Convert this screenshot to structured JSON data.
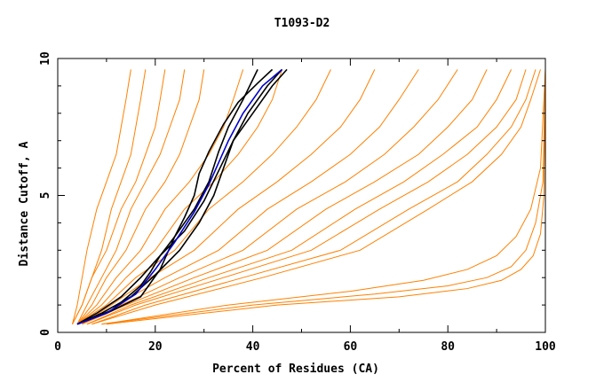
{
  "chart_data": {
    "type": "line",
    "title": "T1093-D2",
    "xlabel": "Percent of Residues (CA)",
    "ylabel": "Distance Cutoff, A",
    "xlim": [
      0,
      100
    ],
    "ylim": [
      0,
      10
    ],
    "x_ticks": [
      "0",
      "20",
      "40",
      "60",
      "80",
      "100"
    ],
    "y_ticks": [
      "0",
      "5",
      "10"
    ],
    "grid": false,
    "legend": "none",
    "colors": {
      "bulk": "#ff8000",
      "highlight_black": "#000000",
      "highlight_blue": "#0000cc"
    },
    "series": [
      {
        "color": "#ff8000",
        "x": [
          3,
          4,
          5,
          6,
          8,
          10,
          12,
          13,
          14,
          15
        ],
        "y": [
          0.3,
          1,
          2,
          3,
          4.5,
          5.5,
          6.5,
          7.5,
          8.5,
          9.6
        ]
      },
      {
        "color": "#ff8000",
        "x": [
          3,
          5,
          7,
          9,
          11,
          13,
          15,
          16,
          17,
          18
        ],
        "y": [
          0.3,
          1,
          2,
          3,
          4.5,
          5.5,
          6.5,
          7.5,
          8.5,
          9.6
        ]
      },
      {
        "color": "#ff8000",
        "x": [
          3,
          5,
          7,
          10,
          13,
          16,
          18,
          20,
          21,
          22
        ],
        "y": [
          0.3,
          1,
          2,
          3,
          4.5,
          5.5,
          6.5,
          7.5,
          8.5,
          9.6
        ]
      },
      {
        "color": "#ff8000",
        "x": [
          4,
          6,
          9,
          12,
          15,
          18,
          21,
          23,
          25,
          26
        ],
        "y": [
          0.3,
          1,
          2,
          3,
          4.5,
          5.5,
          6.5,
          7.5,
          8.5,
          9.6
        ]
      },
      {
        "color": "#ff8000",
        "x": [
          4,
          7,
          10,
          14,
          18,
          22,
          25,
          27,
          29,
          30
        ],
        "y": [
          0.3,
          1,
          2,
          3,
          4.5,
          5.5,
          6.5,
          7.5,
          8.5,
          9.6
        ]
      },
      {
        "color": "#ff8000",
        "x": [
          4,
          8,
          12,
          17,
          22,
          27,
          31,
          34,
          36,
          38
        ],
        "y": [
          0.3,
          1,
          2,
          3,
          4.5,
          5.5,
          6.5,
          7.5,
          8.5,
          9.6
        ]
      },
      {
        "color": "#ff8000",
        "x": [
          4,
          9,
          14,
          20,
          26,
          32,
          37,
          41,
          44,
          46
        ],
        "y": [
          0.3,
          1,
          2,
          3,
          4.5,
          5.5,
          6.5,
          7.5,
          8.5,
          9.6
        ]
      },
      {
        "color": "#ff8000",
        "x": [
          4,
          10,
          16,
          24,
          31,
          38,
          44,
          49,
          53,
          56
        ],
        "y": [
          0.3,
          1,
          2,
          3,
          4.5,
          5.5,
          6.5,
          7.5,
          8.5,
          9.6
        ]
      },
      {
        "color": "#ff8000",
        "x": [
          5,
          11,
          19,
          28,
          37,
          45,
          52,
          58,
          62,
          65
        ],
        "y": [
          0.3,
          1,
          2,
          3,
          4.5,
          5.5,
          6.5,
          7.5,
          8.5,
          9.6
        ]
      },
      {
        "color": "#ff8000",
        "x": [
          5,
          12,
          22,
          33,
          43,
          52,
          60,
          66,
          70,
          74
        ],
        "y": [
          0.3,
          1,
          2,
          3,
          4.5,
          5.5,
          6.5,
          7.5,
          8.5,
          9.6
        ]
      },
      {
        "color": "#ff8000",
        "x": [
          5,
          13,
          25,
          38,
          49,
          59,
          67,
          73,
          78,
          82
        ],
        "y": [
          0.3,
          1,
          2,
          3,
          4.5,
          5.5,
          6.5,
          7.5,
          8.5,
          9.6
        ]
      },
      {
        "color": "#ff8000",
        "x": [
          5,
          14,
          28,
          43,
          55,
          65,
          74,
          80,
          85,
          88
        ],
        "y": [
          0.3,
          1,
          2,
          3,
          4.5,
          5.5,
          6.5,
          7.5,
          8.5,
          9.6
        ]
      },
      {
        "color": "#ff8000",
        "x": [
          6,
          15,
          31,
          48,
          61,
          71,
          79,
          86,
          90,
          93
        ],
        "y": [
          0.3,
          1,
          2,
          3,
          4.5,
          5.5,
          6.5,
          7.5,
          8.5,
          9.6
        ]
      },
      {
        "color": "#ff8000",
        "x": [
          6,
          16,
          34,
          52,
          66,
          76,
          84,
          90,
          94,
          96
        ],
        "y": [
          0.3,
          1,
          2,
          3,
          4.5,
          5.5,
          6.5,
          7.5,
          8.5,
          9.6
        ]
      },
      {
        "color": "#ff8000",
        "x": [
          7,
          18,
          38,
          58,
          72,
          82,
          88,
          93,
          96,
          98
        ],
        "y": [
          0.3,
          1,
          2,
          3,
          4.5,
          5.5,
          6.5,
          7.5,
          8.5,
          9.6
        ]
      },
      {
        "color": "#ff8000",
        "x": [
          7,
          20,
          42,
          62,
          76,
          85,
          91,
          95,
          97,
          99
        ],
        "y": [
          0.3,
          1,
          2,
          3,
          4.5,
          5.5,
          6.5,
          7.5,
          8.5,
          9.6
        ]
      },
      {
        "color": "#ff8000",
        "x": [
          9,
          35,
          60,
          75,
          84,
          90,
          94,
          97,
          99,
          100
        ],
        "y": [
          0.3,
          1,
          1.5,
          1.9,
          2.3,
          2.8,
          3.5,
          4.5,
          6,
          9.6
        ]
      },
      {
        "color": "#ff8000",
        "x": [
          9,
          40,
          65,
          80,
          88,
          93,
          96,
          98,
          99.5,
          100
        ],
        "y": [
          0.3,
          1,
          1.4,
          1.7,
          2,
          2.4,
          3,
          4,
          5.5,
          9.6
        ]
      },
      {
        "color": "#ff8000",
        "x": [
          10,
          45,
          70,
          84,
          91,
          95,
          97.5,
          99,
          99.7,
          100
        ],
        "y": [
          0.3,
          1,
          1.3,
          1.6,
          1.9,
          2.3,
          2.8,
          3.6,
          5,
          9.6
        ]
      },
      {
        "color": "#000000",
        "x": [
          4,
          8,
          13,
          17,
          21,
          26,
          30,
          33,
          36,
          40,
          44,
          47
        ],
        "y": [
          0.3,
          0.7,
          1.3,
          2.0,
          2.8,
          3.7,
          4.8,
          5.9,
          7.0,
          8.0,
          9.0,
          9.6
        ]
      },
      {
        "color": "#000000",
        "x": [
          4,
          9,
          15,
          20,
          25,
          29,
          32,
          34,
          36,
          39,
          43,
          46
        ],
        "y": [
          0.3,
          0.7,
          1.3,
          2.1,
          3.0,
          4.0,
          5.0,
          6.0,
          7.0,
          8.0,
          9.0,
          9.6
        ]
      },
      {
        "color": "#000000",
        "x": [
          4,
          10,
          17,
          21,
          24,
          28,
          31,
          33,
          35,
          38,
          41
        ],
        "y": [
          0.3,
          0.7,
          1.3,
          2.3,
          3.5,
          4.5,
          5.5,
          6.6,
          7.5,
          8.5,
          9.6
        ]
      },
      {
        "color": "#000000",
        "x": [
          4,
          11,
          17,
          19,
          21,
          24,
          26,
          28,
          29,
          31,
          34,
          37,
          41,
          44
        ],
        "y": [
          0.3,
          0.8,
          1.7,
          2.2,
          2.8,
          3.5,
          4.2,
          5.0,
          5.8,
          6.6,
          7.6,
          8.4,
          9.1,
          9.6
        ]
      },
      {
        "color": "#0000cc",
        "x": [
          4,
          10,
          16,
          20,
          24,
          28,
          31,
          33,
          35,
          38,
          42,
          46
        ],
        "y": [
          0.3,
          0.7,
          1.4,
          2.3,
          3.3,
          4.4,
          5.4,
          6.2,
          7.0,
          8.0,
          9.0,
          9.6
        ]
      }
    ]
  }
}
